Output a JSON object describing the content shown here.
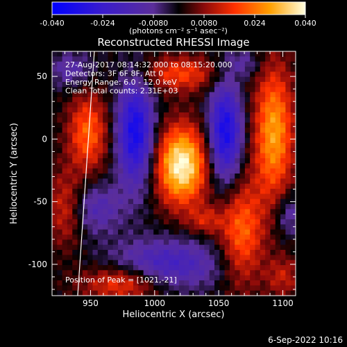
{
  "colorbar": {
    "ticks": [
      "-0.040",
      "-0.024",
      "-0.0080",
      "0.0080",
      "0.024",
      "0.040"
    ],
    "units": "(photons cm⁻² s⁻¹ asec⁻²)",
    "vmin": -0.04,
    "vmax": 0.04
  },
  "chart_data": {
    "type": "heatmap",
    "title": "Reconstructed RHESSI Image",
    "xlabel": "Heliocentric X (arcsec)",
    "ylabel": "Heliocentric Y (arcsec)",
    "xlim": [
      920,
      1110
    ],
    "ylim": [
      -125,
      70
    ],
    "xticks": [
      "950",
      "1000",
      "1050",
      "1100"
    ],
    "yticks": [
      "50",
      "0",
      "-50",
      "-100"
    ],
    "annotations": [
      "27-Aug-2017 08:14:32.000 to 08:15:20.000",
      "Detectors: 3F 6F 8F, Att 0",
      "Energy Range: 6.0 - 12.0 keV",
      "Clean    Total counts: 2.31E+03"
    ],
    "peak_label": "Position of Peak = [1021,-21]",
    "peak": {
      "x": 1021,
      "y": -21
    },
    "limb_line": {
      "x_top": 953,
      "y_top": 70,
      "x_bottom": 940,
      "y_bottom": -125
    }
  },
  "footer": {
    "timestamp": "6-Sep-2022 10:16"
  }
}
